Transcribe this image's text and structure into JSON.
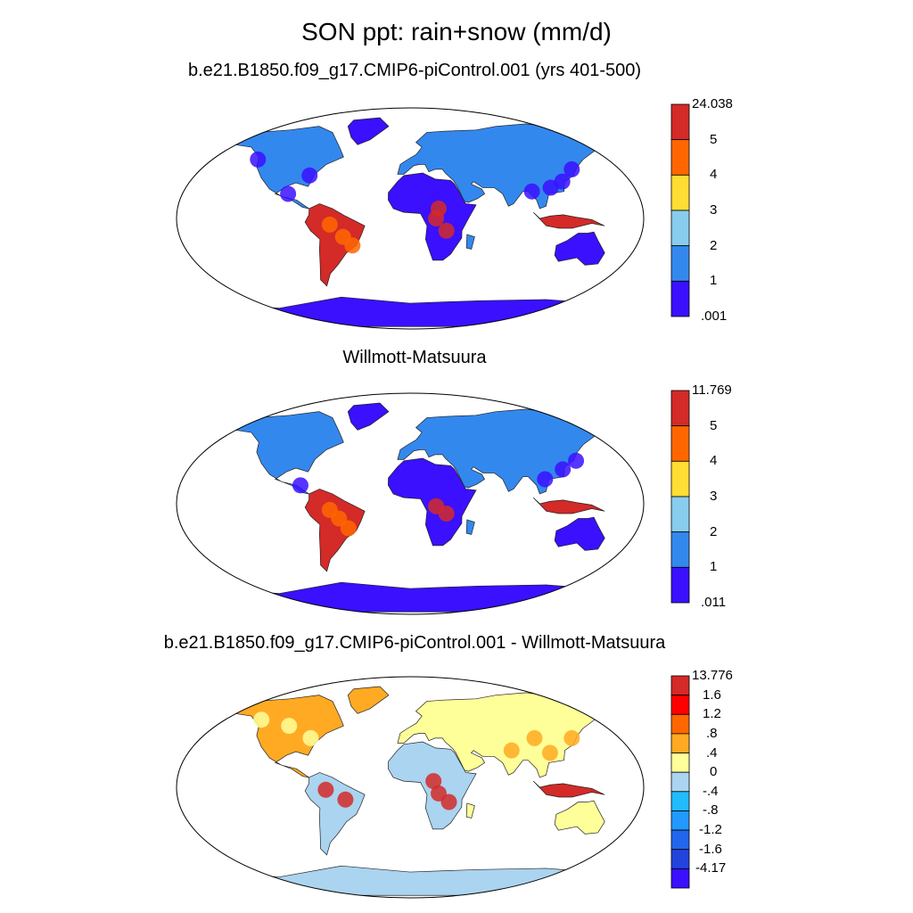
{
  "figure": {
    "title": "SON ppt: rain+snow (mm/d)"
  },
  "panels": [
    {
      "title": "b.e21.B1850.f09_g17.CMIP6-piControl.001 (yrs 401-500)",
      "colorbar": {
        "labels": [
          "24.038",
          "5",
          "4",
          "3",
          "2",
          "1",
          ".001"
        ],
        "colors": [
          "#d42a28",
          "#ff6600",
          "#ffdd33",
          "#88ccee",
          "#3388ee",
          "#3a10ff"
        ]
      },
      "tone": "abs-model"
    },
    {
      "title": "Willmott-Matsuura",
      "colorbar": {
        "labels": [
          "11.769",
          "5",
          "4",
          "3",
          "2",
          "1",
          ".011"
        ],
        "colors": [
          "#d42a28",
          "#ff6600",
          "#ffdd33",
          "#88ccee",
          "#3388ee",
          "#3a10ff"
        ]
      },
      "tone": "abs-obs"
    },
    {
      "title": "b.e21.B1850.f09_g17.CMIP6-piControl.001 - Willmott-Matsuura",
      "colorbar": {
        "labels": [
          "13.776",
          "1.6",
          "1.2",
          ".8",
          ".4",
          "0",
          "-.4",
          "-.8",
          "-1.2",
          "-1.6",
          "-4.17"
        ],
        "colors": [
          "#d42a28",
          "#ff0000",
          "#ff6600",
          "#ffaa22",
          "#ffff99",
          "#aad4f0",
          "#22bbff",
          "#2299ff",
          "#2266ee",
          "#2244dd",
          "#3a10ff"
        ]
      },
      "tone": "diff"
    }
  ]
}
